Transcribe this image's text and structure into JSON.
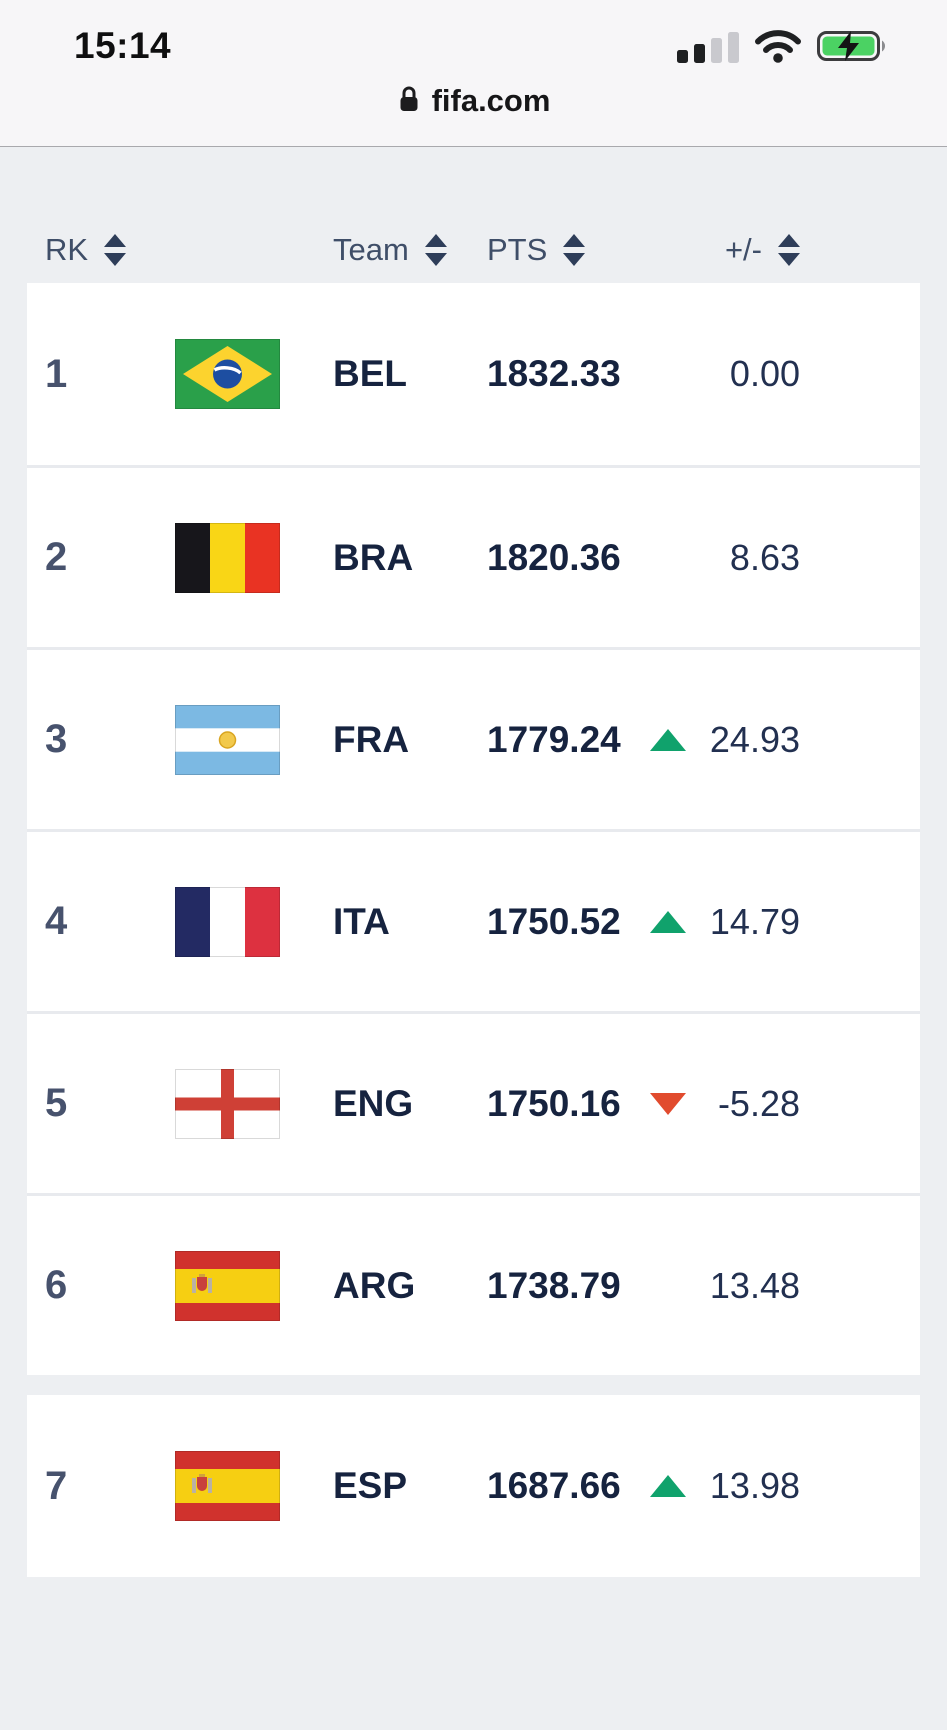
{
  "status_bar": {
    "time": "15:14",
    "icons": [
      "cellular-signal-icon",
      "wifi-icon",
      "battery-charging-icon"
    ]
  },
  "browser": {
    "lock_icon": "lock-icon",
    "url": "fifa.com"
  },
  "table": {
    "headers": [
      {
        "label": "RK"
      },
      {
        "label": "Team"
      },
      {
        "label": "PTS"
      },
      {
        "label": "+/-"
      }
    ],
    "rows": [
      {
        "rank": "1",
        "flag": "brazil",
        "team": "BEL",
        "pts": "1832.33",
        "trend": "none",
        "change": "0.00"
      },
      {
        "rank": "2",
        "flag": "belgium",
        "team": "BRA",
        "pts": "1820.36",
        "trend": "none",
        "change": "8.63"
      },
      {
        "rank": "3",
        "flag": "argentina",
        "team": "FRA",
        "pts": "1779.24",
        "trend": "up",
        "change": "24.93"
      },
      {
        "rank": "4",
        "flag": "france",
        "team": "ITA",
        "pts": "1750.52",
        "trend": "up",
        "change": "14.79"
      },
      {
        "rank": "5",
        "flag": "england",
        "team": "ENG",
        "pts": "1750.16",
        "trend": "down",
        "change": "-5.28"
      },
      {
        "rank": "6",
        "flag": "spain",
        "team": "ARG",
        "pts": "1738.79",
        "trend": "none",
        "change": "13.48"
      },
      {
        "rank": "7",
        "flag": "spain",
        "team": "ESP",
        "pts": "1687.66",
        "trend": "up",
        "change": "13.98"
      }
    ],
    "colors": {
      "trend_up": "#10a26c",
      "trend_down": "#e14b2e",
      "header_text": "#3f4e68",
      "row_text": "#16233f"
    }
  }
}
